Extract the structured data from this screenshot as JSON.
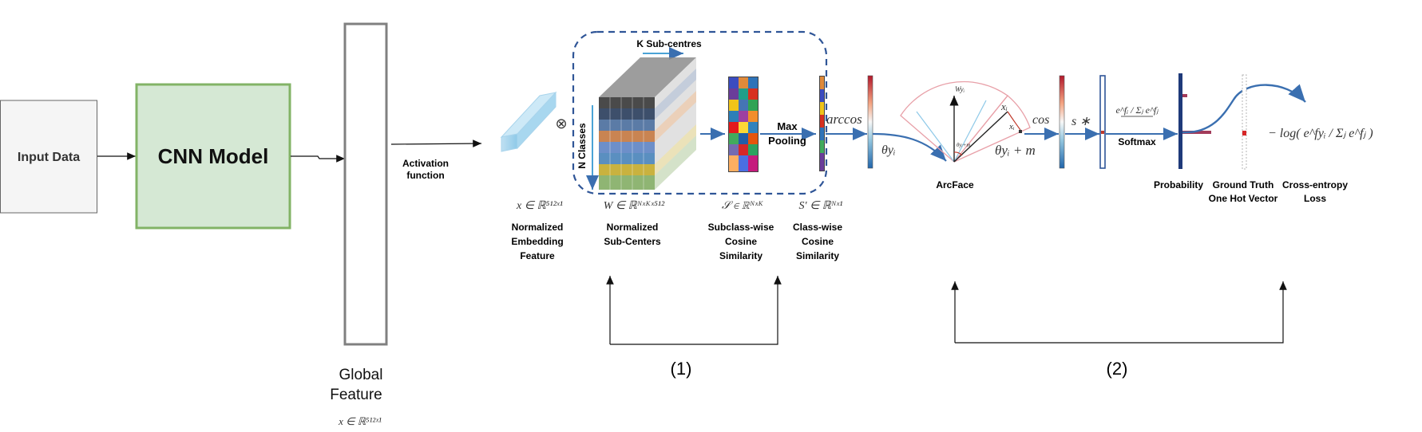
{
  "colors": {
    "input_fill": "#f5f5f5",
    "input_stroke": "#666666",
    "cnn_fill": "#d5e8d4",
    "cnn_stroke": "#82b366",
    "arrow_blue": "#3a6fb0",
    "dashed_box": "#2f5597",
    "text_dark": "#111111",
    "math_gray": "#777777",
    "pink": "#e8a0a8"
  },
  "blocks": {
    "input_data": "Input Data",
    "cnn_model": "CNN Model",
    "global_feature_line1": "Global",
    "global_feature_line2": "Feature",
    "global_feature_math": "x ∈ ℝ⁵¹²ˣ¹",
    "activation_line1": "Activation",
    "activation_line2": "function"
  },
  "subcenter": {
    "k_subcentres": "K Sub-centres",
    "n_classes": "N Classes",
    "otimes": "⊗",
    "max_pooling_line1": "Max",
    "max_pooling_line2": "Pooling"
  },
  "math": {
    "x_embed": "x ∈ ℝ⁵¹²ˣ¹",
    "w_subcenters": "W ∈ ℝᴺˣᴷˣ⁵¹²",
    "s_subclass": "𝒮 ∈ ℝᴺˣᴷ",
    "s_classwise": "S′ ∈ ℝᴺˣ¹",
    "arccos": "arccos",
    "theta_yi": "θyᵢ",
    "theta_plus_m": "θyᵢ + m",
    "cos": "cos",
    "s_times": "s ∗",
    "softmax_frac": "e^fᵢ / Σⱼ e^fⱼ",
    "loss_formula": "− log( e^fyᵢ / Σⱼ e^fⱼ )"
  },
  "captions": {
    "embed": [
      "Normalized",
      "Embedding",
      "Feature"
    ],
    "subcenters": [
      "Normalized",
      "Sub-Centers"
    ],
    "subclass_sim": [
      "Subclass-wise",
      "Cosine",
      "Similarity"
    ],
    "class_sim": [
      "Class-wise",
      "Cosine",
      "Similarity"
    ],
    "arcface": "ArcFace",
    "softmax": "Softmax",
    "probability": "Probability",
    "ground_truth": [
      "Ground Truth",
      "One Hot Vector"
    ],
    "ce_loss": [
      "Cross-entropy",
      "Loss"
    ]
  },
  "arcface_labels": {
    "w_yi": "Wyᵢ",
    "x_i": "xᵢ",
    "x_i_2": "xᵢ",
    "theta_m": "θyᵢ+m"
  },
  "steps": {
    "step1": "(1)",
    "step2": "(2)"
  }
}
